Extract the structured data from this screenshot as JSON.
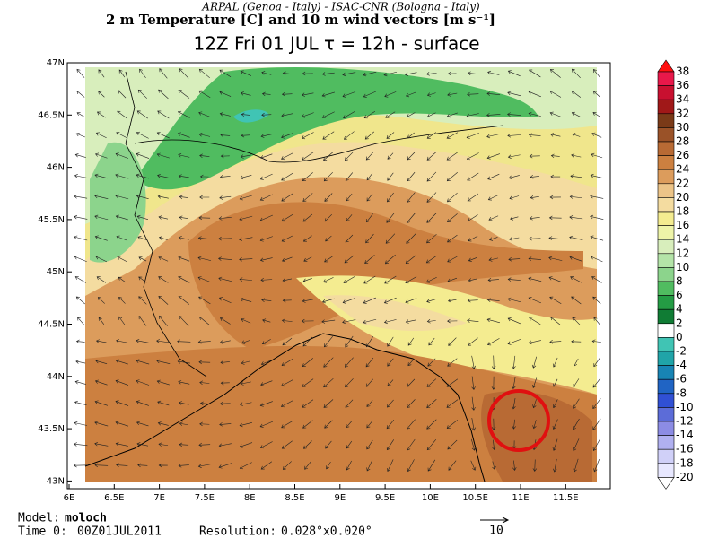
{
  "header": {
    "line1": "ARPAL (Genoa - Italy)  -  ISAC-CNR (Bologna - Italy)",
    "line2": "2 m Temperature [C] and 10 m wind vectors [m s⁻¹]",
    "line3": "12Z Fri 01 JUL  τ = 12h  -  surface"
  },
  "map": {
    "lat_labels": [
      "47N",
      "46.5N",
      "46N",
      "45.5N",
      "45N",
      "44.5N",
      "44N",
      "43.5N",
      "43N"
    ],
    "lon_labels": [
      "6E",
      "6.5E",
      "7E",
      "7.5E",
      "8E",
      "8.5E",
      "9E",
      "9.5E",
      "10E",
      "10.5E",
      "11E",
      "11.5E"
    ]
  },
  "colorbar": {
    "labels": [
      "38",
      "36",
      "34",
      "32",
      "30",
      "28",
      "26",
      "24",
      "22",
      "20",
      "18",
      "16",
      "14",
      "12",
      "10",
      "8",
      "6",
      "4",
      "2",
      "0",
      "-2",
      "-4",
      "-6",
      "-8",
      "-10",
      "-12",
      "-14",
      "-16",
      "-18",
      "-20"
    ],
    "colors": [
      "#ff1010",
      "#e8184a",
      "#c81030",
      "#a01818",
      "#7a3a18",
      "#9a5228",
      "#b86a34",
      "#cc8040",
      "#dc9c5c",
      "#ecc488",
      "#f4dca0",
      "#f4ec90",
      "#eef4a8",
      "#d8eebc",
      "#b4e4a8",
      "#8cd48c",
      "#50bc60",
      "#249c44",
      "#107c34",
      "#ffffff",
      "#40c4b4",
      "#20a4a8",
      "#1884b4",
      "#2064c4",
      "#3050d4",
      "#5c6cd8",
      "#8c8ce4",
      "#b0b0f0",
      "#d0d0f8",
      "#e8e8ff",
      "#ffffff"
    ]
  },
  "footer": {
    "model_label": "Model:",
    "model": "moloch",
    "time_label": "Time 0:",
    "time": "00Z01JUL2011",
    "resolution_label": "Resolution:",
    "resolution": "0.028°x0.020°",
    "vector_ref": "10"
  }
}
